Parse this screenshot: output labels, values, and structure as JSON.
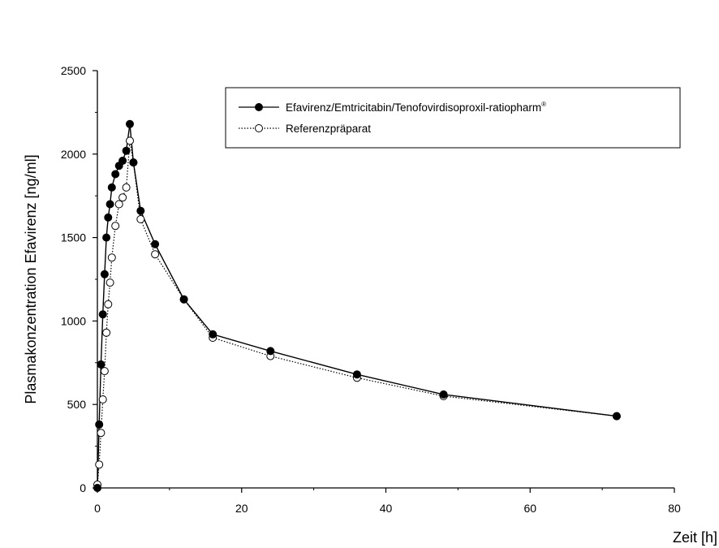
{
  "chart_data": {
    "type": "line",
    "xlabel": "Zeit [h]",
    "ylabel": "Plasmakonzentration Efavirenz [ng/ml]",
    "xlim": [
      0,
      80
    ],
    "ylim": [
      0,
      2500
    ],
    "xticks": [
      0,
      20,
      40,
      60,
      80
    ],
    "yticks": [
      0,
      500,
      1000,
      1500,
      2000,
      2500
    ],
    "grid": false,
    "legend_position": "top-right",
    "series": [
      {
        "name": "Efavirenz/Emtricitabin/Tenofovirdisoproxil-ratiopharm",
        "name_superscript": "®",
        "marker": "filled-circle",
        "line": "solid",
        "x": [
          0,
          0.25,
          0.5,
          0.75,
          1,
          1.25,
          1.5,
          1.75,
          2,
          2.5,
          3,
          3.5,
          4,
          4.5,
          5,
          6,
          8,
          12,
          16,
          24,
          36,
          48,
          72
        ],
        "y": [
          0,
          380,
          740,
          1040,
          1280,
          1500,
          1620,
          1700,
          1800,
          1880,
          1930,
          1960,
          2020,
          2180,
          1950,
          1660,
          1460,
          1130,
          920,
          820,
          680,
          560,
          430
        ]
      },
      {
        "name": "Referenzpräparat",
        "marker": "open-circle",
        "line": "dotted",
        "x": [
          0,
          0.25,
          0.5,
          0.75,
          1,
          1.25,
          1.5,
          1.75,
          2,
          2.5,
          3,
          3.5,
          4,
          4.5,
          5,
          6,
          8,
          12,
          16,
          24,
          36,
          48,
          72
        ],
        "y": [
          20,
          140,
          330,
          530,
          700,
          930,
          1100,
          1230,
          1380,
          1570,
          1700,
          1740,
          1800,
          2080,
          1950,
          1610,
          1400,
          1130,
          900,
          790,
          660,
          550,
          430
        ]
      }
    ]
  }
}
